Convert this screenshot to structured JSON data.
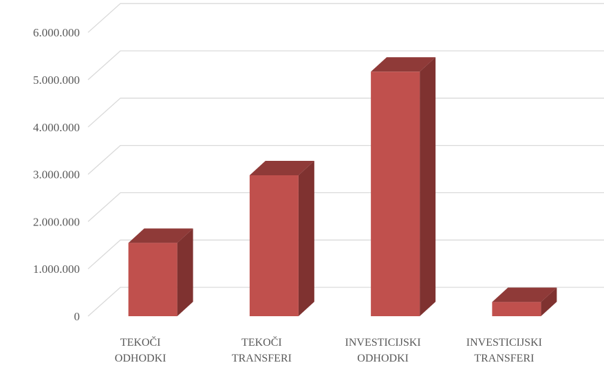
{
  "chart_data": {
    "type": "bar",
    "three_d": true,
    "categories": [
      [
        "TEKOČI",
        "ODHODKI"
      ],
      [
        "TEKOČI",
        "TRANSFERI"
      ],
      [
        "INVESTICIJSKI",
        "ODHODKI"
      ],
      [
        "INVESTICIJSKI",
        "TRANSFERI"
      ]
    ],
    "values": [
      1550000,
      2980000,
      5170000,
      300000
    ],
    "ylim": [
      0,
      6000000
    ],
    "yticks": [
      "0",
      "1.000.000",
      "2.000.000",
      "3.000.000",
      "4.000.000",
      "5.000.000",
      "6.000.000"
    ],
    "grid": true,
    "legend": "none",
    "colors": {
      "bar_front": "#c0504d",
      "bar_top": "#8f3a38",
      "bar_side": "#7f3230",
      "grid": "#d9d9d9",
      "text": "#595959"
    }
  }
}
